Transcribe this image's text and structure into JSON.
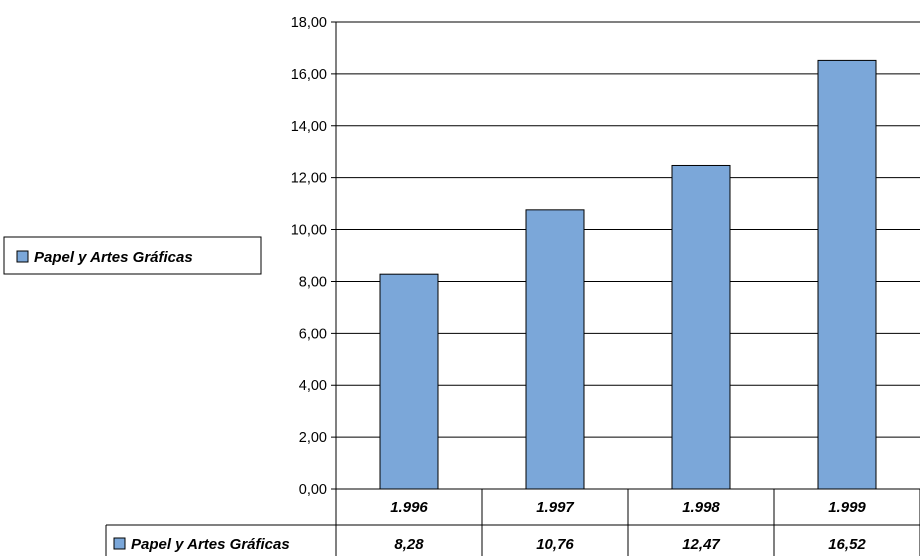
{
  "colors": {
    "bar": "#7BA7D9",
    "bar_stroke": "#000000",
    "grid": "#000000"
  },
  "chart_data": {
    "type": "bar",
    "categories": [
      "1.996",
      "1.997",
      "1.998",
      "1.999"
    ],
    "series": [
      {
        "name": "Papel y Artes Gráficas",
        "values": [
          8.28,
          10.76,
          12.47,
          16.52
        ]
      }
    ],
    "value_labels": [
      "8,28",
      "10,76",
      "12,47",
      "16,52"
    ],
    "yticks": [
      "0,00",
      "2,00",
      "4,00",
      "6,00",
      "8,00",
      "10,00",
      "12,00",
      "14,00",
      "16,00",
      "18,00"
    ],
    "ylim": [
      0,
      18
    ],
    "grid": true,
    "legend": {
      "position": "left",
      "label": "Papel y Artes Gráficas"
    },
    "data_table": true
  }
}
